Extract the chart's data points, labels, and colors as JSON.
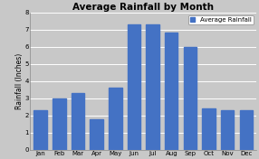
{
  "title": "Average Rainfall by Month",
  "ylabel": "Rainfall (Inches)",
  "categories": [
    "Jan",
    "Feb",
    "Mar",
    "Apr",
    "May",
    "Jun",
    "Jul",
    "Aug",
    "Sep",
    "Oct",
    "Nov",
    "Dec"
  ],
  "values": [
    2.3,
    3.0,
    3.3,
    1.8,
    3.6,
    7.3,
    7.3,
    6.8,
    6.0,
    2.4,
    2.3,
    2.3
  ],
  "bar_color": "#4472C4",
  "ylim": [
    0,
    8
  ],
  "yticks": [
    0,
    1,
    2,
    3,
    4,
    5,
    6,
    7,
    8
  ],
  "legend_label": "Average Rainfall",
  "background_color": "#C8C8C8",
  "plot_bg_color": "#C8C8C8",
  "grid_color": "#FFFFFF",
  "title_fontsize": 7.5,
  "axis_label_fontsize": 5.5,
  "tick_fontsize": 5.0,
  "legend_fontsize": 5.0
}
